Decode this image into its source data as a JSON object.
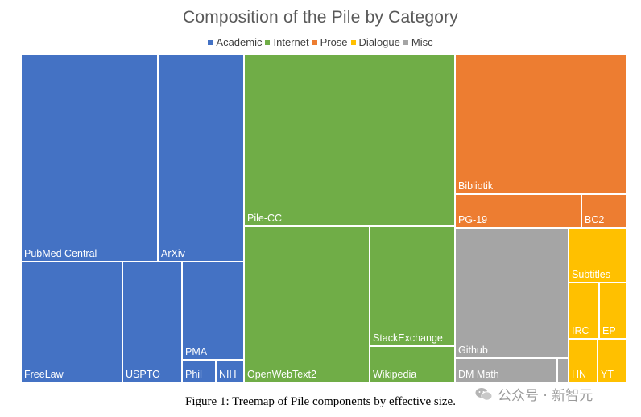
{
  "chart_data": {
    "type": "treemap",
    "title": "Composition of the Pile by Category",
    "legend": [
      {
        "name": "Academic",
        "color": "#4472C4"
      },
      {
        "name": "Internet",
        "color": "#70AD47"
      },
      {
        "name": "Prose",
        "color": "#ED7D31"
      },
      {
        "name": "Dialogue",
        "color": "#FFC000"
      },
      {
        "name": "Misc",
        "color": "#A5A5A5"
      }
    ],
    "legend_placement": "top-center",
    "items": [
      {
        "name": "Pile-CC",
        "category": "Internet",
        "value": 18.1
      },
      {
        "name": "PubMed Central",
        "category": "Academic",
        "value": 14.4
      },
      {
        "name": "Bibliotik",
        "category": "Prose",
        "value": 12.1
      },
      {
        "name": "OpenWebText2",
        "category": "Internet",
        "value": 10.0
      },
      {
        "name": "ArXiv",
        "category": "Academic",
        "value": 9.0
      },
      {
        "name": "Github",
        "category": "Misc",
        "value": 7.6
      },
      {
        "name": "FreeLaw",
        "category": "Academic",
        "value": 6.1
      },
      {
        "name": "StackExchange",
        "category": "Internet",
        "value": 5.1
      },
      {
        "name": "USPTO",
        "category": "Academic",
        "value": 3.7
      },
      {
        "name": "PMA",
        "category": "Academic",
        "value": 3.1
      },
      {
        "name": "Wikipedia",
        "category": "Internet",
        "value": 1.5
      },
      {
        "name": "PG-19",
        "category": "Prose",
        "value": 2.2
      },
      {
        "name": "BC2",
        "category": "Prose",
        "value": 1.1
      },
      {
        "name": "DM Math",
        "category": "Misc",
        "value": 1.2
      },
      {
        "name": "Subtitles",
        "category": "Dialogue",
        "value": 1.6
      },
      {
        "name": "IRC",
        "category": "Dialogue",
        "value": 1.0
      },
      {
        "name": "EP",
        "category": "Dialogue",
        "value": 0.7
      },
      {
        "name": "HN",
        "category": "Dialogue",
        "value": 0.6
      },
      {
        "name": "YT",
        "category": "Dialogue",
        "value": 0.6
      },
      {
        "name": "Phil",
        "category": "Academic",
        "value": 0.4
      },
      {
        "name": "NIH",
        "category": "Academic",
        "value": 0.3
      },
      {
        "name": "",
        "category": "Misc",
        "value": 0.1
      }
    ]
  },
  "caption": "Figure 1: Treemap of Pile components by effective size.",
  "watermark": "公众号 · 新智元"
}
